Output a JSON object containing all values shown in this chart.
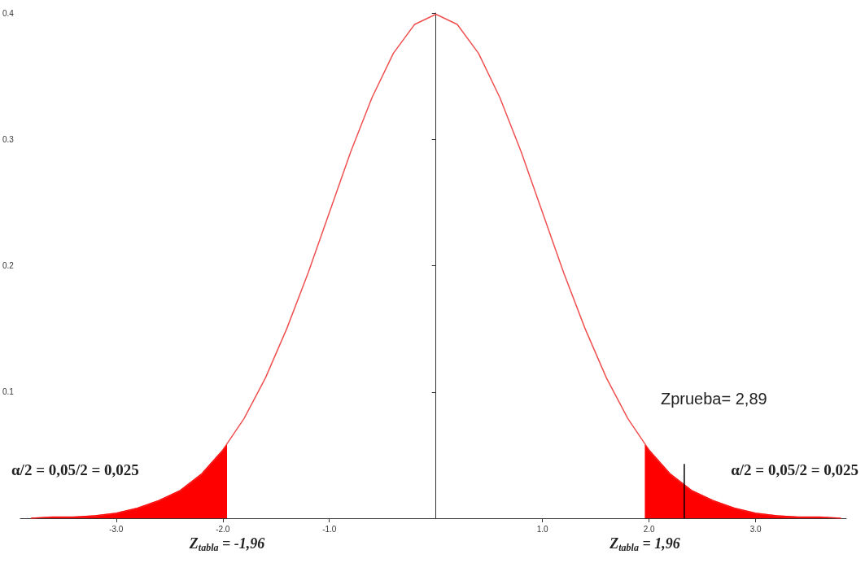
{
  "chart_data": {
    "type": "line",
    "xlim": [
      -3.9,
      3.85
    ],
    "ylim": [
      0,
      0.4
    ],
    "xticks": [
      {
        "value": -3,
        "label": "-3.0"
      },
      {
        "value": -2,
        "label": "-2.0"
      },
      {
        "value": -1,
        "label": "-1.0"
      },
      {
        "value": 1,
        "label": "1.0"
      },
      {
        "value": 2,
        "label": "2.0"
      },
      {
        "value": 3,
        "label": "3.0"
      }
    ],
    "yticks": [
      0.1,
      0.2,
      0.3,
      0.4
    ],
    "grid": false,
    "marker": "none",
    "line_style": "solid",
    "series": [
      {
        "color": "#f05050",
        "x": [
          -3.8,
          -3.6,
          -3.4,
          -3.2,
          -3.0,
          -2.8,
          -2.6,
          -2.4,
          -2.2,
          -2.0,
          -1.8,
          -1.6,
          -1.4,
          -1.2,
          -1.0,
          -0.8,
          -0.6,
          -0.4,
          -0.2,
          0,
          0.2,
          0.4,
          0.6,
          0.8,
          1.0,
          1.2,
          1.4,
          1.6,
          1.8,
          2.0,
          2.2,
          2.4,
          2.6,
          2.8,
          3.0,
          3.2,
          3.4,
          3.6,
          3.8
        ],
        "values": [
          0.0,
          0.001,
          0.001,
          0.002,
          0.004,
          0.008,
          0.014,
          0.022,
          0.035,
          0.054,
          0.079,
          0.111,
          0.15,
          0.194,
          0.242,
          0.29,
          0.333,
          0.368,
          0.391,
          0.399,
          0.391,
          0.368,
          0.333,
          0.29,
          0.242,
          0.194,
          0.15,
          0.111,
          0.079,
          0.054,
          0.035,
          0.022,
          0.014,
          0.008,
          0.004,
          0.002,
          0.001,
          0.001,
          0.0
        ]
      },
      {
        "type": "area",
        "color": "#ff0000",
        "x": [
          -3.8,
          -3.6,
          -3.4,
          -3.2,
          -3.0,
          -2.8,
          -2.6,
          -2.4,
          -2.2,
          -2.0,
          -1.96
        ],
        "values": [
          0.0,
          0.001,
          0.001,
          0.002,
          0.004,
          0.008,
          0.014,
          0.022,
          0.035,
          0.054,
          0.058
        ]
      },
      {
        "type": "area",
        "color": "#ff0000",
        "x": [
          1.96,
          2.0,
          2.2,
          2.4,
          2.6,
          2.8,
          3.0,
          3.2,
          3.4,
          3.6,
          3.8
        ],
        "values": [
          0.058,
          0.054,
          0.035,
          0.022,
          0.014,
          0.008,
          0.004,
          0.002,
          0.001,
          0.001,
          0.0
        ]
      },
      {
        "color": "#000000",
        "x": [
          2.33,
          2.33
        ],
        "values": [
          0,
          0.043
        ]
      }
    ],
    "annotations": [
      "α/2 = 0,05/2 = 0,025",
      "α/2 = 0,05/2 = 0,025",
      "Zprueba= 2,89",
      {
        "text": "Z$_{tabla}$ = -1,96",
        "x": -1.96,
        "y": 0
      },
      {
        "text": "Z$_{tabla}$ = 1,96",
        "x": 1.96,
        "y": 0
      }
    ]
  }
}
